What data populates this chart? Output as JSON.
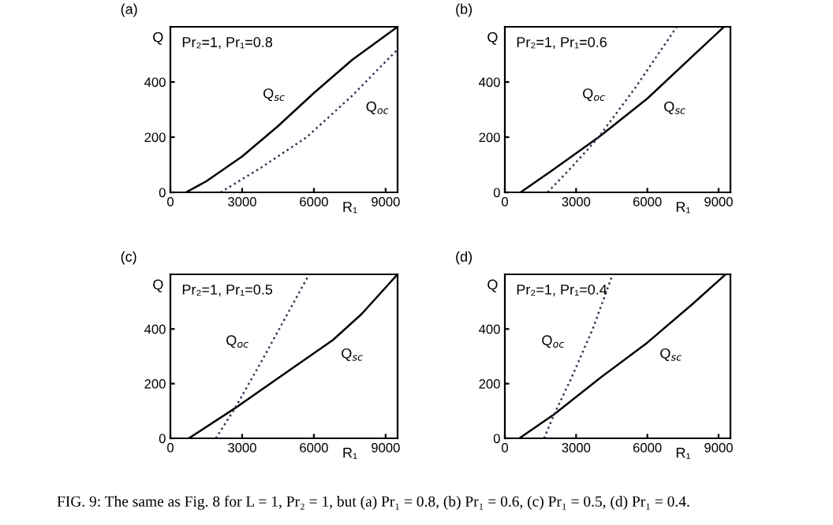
{
  "chart_data": [
    {
      "type": "line",
      "ylabel": "Q",
      "xlabel": "R₁",
      "xlim": [
        0,
        9500
      ],
      "ylim": [
        0,
        600
      ],
      "xticks": [
        0,
        3000,
        6000,
        9000
      ],
      "yticks": [
        0,
        200,
        400
      ],
      "grid": false,
      "legend": false,
      "series": [
        {
          "name": "Q$_{sc}$",
          "color": "#000000",
          "line_style": "solid",
          "x": [
            650,
            1500,
            3000,
            4500,
            6000,
            7600,
            9500
          ],
          "values": [
            0,
            40,
            130,
            240,
            360,
            480,
            600
          ]
        },
        {
          "name": "Q$_{oc}$",
          "color": "#3a2f55",
          "line_style": "dotted",
          "x": [
            2100,
            3800,
            5700,
            7600,
            9500
          ],
          "values": [
            0,
            90,
            200,
            350,
            518
          ]
        }
      ],
      "annotations": [
        "(a)",
        "Pr₂=1, Pr₁=0.8"
      ]
    },
    {
      "type": "line",
      "ylabel": "Q",
      "xlabel": "R₁",
      "xlim": [
        0,
        9500
      ],
      "ylim": [
        0,
        600
      ],
      "xticks": [
        0,
        3000,
        6000,
        9000
      ],
      "yticks": [
        0,
        200,
        400
      ],
      "grid": false,
      "legend": false,
      "series": [
        {
          "name": "Q$_{sc}$",
          "color": "#000000",
          "line_style": "solid",
          "x": [
            660,
            2000,
            3950,
            6000,
            7900,
            9230
          ],
          "values": [
            0,
            80,
            200,
            340,
            493,
            600
          ]
        },
        {
          "name": "Q$_{oc}$",
          "color": "#3a2f55",
          "line_style": "dotted",
          "x": [
            1800,
            2800,
            3950,
            5500,
            7240
          ],
          "values": [
            0,
            90,
            200,
            380,
            600
          ]
        }
      ],
      "annotations": [
        "(b)",
        "Pr₂=1, Pr₁=0.6"
      ]
    },
    {
      "type": "line",
      "ylabel": "Q",
      "xlabel": "R₁",
      "xlim": [
        0,
        9500
      ],
      "ylim": [
        0,
        600
      ],
      "xticks": [
        0,
        3000,
        6000,
        9000
      ],
      "yticks": [
        0,
        200,
        400
      ],
      "grid": false,
      "legend": false,
      "series": [
        {
          "name": "Q$_{sc}$",
          "color": "#000000",
          "line_style": "solid",
          "x": [
            770,
            2700,
            5000,
            6800,
            8000,
            9500
          ],
          "values": [
            0,
            110,
            250,
            360,
            455,
            600
          ]
        },
        {
          "name": "Q$_{oc}$",
          "color": "#3a2f55",
          "line_style": "dotted",
          "x": [
            1900,
            2700,
            3800,
            4800,
            5800
          ],
          "values": [
            0,
            110,
            280,
            440,
            600
          ]
        }
      ],
      "annotations": [
        "(c)",
        "Pr₂=1, Pr₁=0.5",
        "FIG. 9: The same as Fig. 8 for L = 1, Pr₂ = 1, but (a) Pr₁ = 0.8, (b) Pr₁ = 0.6, (c) Pr₁ = 0.5, (d) Pr₁ = 0.4."
      ]
    },
    {
      "type": "line",
      "ylabel": "Q",
      "xlabel": "R₁",
      "xlim": [
        0,
        9500
      ],
      "ylim": [
        0,
        600
      ],
      "xticks": [
        0,
        3000,
        6000,
        9000
      ],
      "yticks": [
        0,
        200,
        400
      ],
      "grid": false,
      "legend": false,
      "series": [
        {
          "name": "Q$_{sc}$",
          "color": "#000000",
          "line_style": "solid",
          "x": [
            610,
            2080,
            4000,
            6000,
            7900,
            9300
          ],
          "values": [
            0,
            88,
            220,
            350,
            491,
            600
          ]
        },
        {
          "name": "Q$_{oc}$",
          "color": "#3a2f55",
          "line_style": "dotted",
          "x": [
            1650,
            2080,
            2800,
            3700,
            4540
          ],
          "values": [
            0,
            88,
            220,
            400,
            600
          ]
        }
      ],
      "annotations": [
        "(d)",
        "Pr₂=1, Pr₁=0.4"
      ]
    }
  ]
}
